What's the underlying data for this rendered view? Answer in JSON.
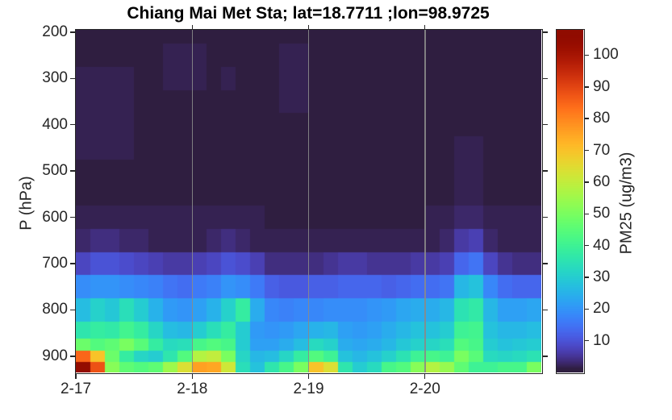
{
  "title": "Chiang Mai Met Sta; lat=18.7711 ;lon=98.9725",
  "axes": {
    "ylabel": "P (hPa)",
    "y_ticks": [
      200,
      300,
      400,
      500,
      600,
      700,
      800,
      900
    ],
    "y_range_hpa": [
      195,
      935
    ],
    "x_tick_labels": [
      "2-17",
      "2-18",
      "2-19",
      "2-20"
    ],
    "x_tick_hours": [
      0,
      24,
      48,
      72
    ],
    "gridline_hours": [
      24,
      48,
      72
    ],
    "x_range_hours": [
      0,
      96
    ]
  },
  "colorbar": {
    "label": "PM25 (ug/m3)",
    "ticks": [
      10,
      20,
      30,
      40,
      50,
      60,
      70,
      80,
      90,
      100
    ],
    "clim": [
      0,
      108
    ],
    "colormap": "turbo"
  },
  "colors": {
    "background": "#ffffff",
    "axis": "#262626",
    "gridline": "#8a8a8a",
    "low_value": "#2e1440",
    "high_value": "#7a0403"
  },
  "chart_data": {
    "type": "heatmap",
    "title": "Chiang Mai Met Sta; lat=18.7711 ;lon=98.9725",
    "ylabel": "P (hPa)",
    "value_label": "PM25 (ug/m3)",
    "x_dates": [
      "2-17",
      "2-18",
      "2-19",
      "2-20"
    ],
    "time_start_hour": 0,
    "time_step_hours": 3,
    "n_times": 32,
    "pressure_levels_hpa": [
      200,
      250,
      300,
      350,
      400,
      450,
      500,
      550,
      600,
      650,
      700,
      750,
      800,
      850,
      875,
      900,
      925
    ],
    "values_ug_m3": [
      [
        1,
        1,
        1,
        1,
        1,
        1,
        1,
        1,
        1,
        1,
        1,
        1,
        1,
        1,
        1,
        1,
        1,
        1,
        1,
        1,
        1,
        1,
        1,
        1,
        1,
        1,
        1,
        1,
        1,
        1,
        1,
        1
      ],
      [
        1,
        1,
        1,
        1,
        1,
        1,
        2,
        2,
        2,
        1,
        1,
        1,
        1,
        1,
        2,
        2,
        1,
        1,
        1,
        1,
        1,
        1,
        1,
        1,
        1,
        1,
        1,
        1,
        1,
        1,
        1,
        1
      ],
      [
        2,
        2,
        2,
        2,
        1,
        1,
        2,
        2,
        2,
        1,
        2,
        1,
        1,
        1,
        2,
        2,
        1,
        1,
        1,
        1,
        1,
        1,
        1,
        1,
        1,
        1,
        1,
        1,
        1,
        1,
        1,
        1
      ],
      [
        2,
        2,
        2,
        2,
        1,
        1,
        1,
        1,
        1,
        1,
        1,
        1,
        1,
        1,
        2,
        2,
        1,
        1,
        1,
        1,
        1,
        1,
        1,
        1,
        1,
        1,
        1,
        1,
        1,
        1,
        1,
        1
      ],
      [
        2,
        2,
        2,
        2,
        1,
        1,
        1,
        1,
        1,
        1,
        1,
        1,
        1,
        1,
        1,
        1,
        1,
        1,
        1,
        1,
        1,
        1,
        1,
        1,
        1,
        1,
        1,
        1,
        1,
        1,
        1,
        1
      ],
      [
        2,
        2,
        2,
        2,
        1,
        1,
        1,
        1,
        1,
        1,
        1,
        1,
        1,
        1,
        1,
        1,
        1,
        1,
        1,
        1,
        1,
        1,
        1,
        1,
        1,
        1,
        2,
        2,
        1,
        1,
        1,
        1
      ],
      [
        1,
        1,
        1,
        1,
        1,
        1,
        1,
        1,
        1,
        1,
        1,
        1,
        1,
        1,
        1,
        1,
        1,
        1,
        1,
        1,
        1,
        1,
        1,
        1,
        1,
        1,
        2,
        2,
        1,
        1,
        1,
        1
      ],
      [
        1,
        1,
        1,
        1,
        1,
        1,
        1,
        1,
        1,
        1,
        1,
        1,
        1,
        1,
        1,
        1,
        1,
        1,
        1,
        1,
        1,
        1,
        1,
        1,
        1,
        1,
        2,
        2,
        1,
        1,
        1,
        1
      ],
      [
        2,
        2,
        2,
        2,
        2,
        2,
        2,
        2,
        2,
        2,
        2,
        2,
        2,
        1,
        1,
        1,
        1,
        1,
        1,
        1,
        1,
        1,
        1,
        1,
        2,
        2,
        3,
        3,
        2,
        2,
        2,
        2
      ],
      [
        3,
        4,
        4,
        3,
        3,
        2,
        2,
        2,
        2,
        3,
        4,
        3,
        2,
        2,
        2,
        2,
        2,
        2,
        2,
        2,
        2,
        2,
        2,
        2,
        2,
        3,
        6,
        7,
        3,
        2,
        2,
        2
      ],
      [
        8,
        10,
        10,
        9,
        8,
        7,
        6,
        6,
        7,
        8,
        10,
        9,
        7,
        4,
        4,
        4,
        4,
        5,
        6,
        6,
        5,
        5,
        5,
        6,
        6,
        7,
        13,
        15,
        8,
        5,
        4,
        4
      ],
      [
        19,
        20,
        20,
        19,
        18,
        17,
        15,
        14,
        16,
        17,
        20,
        19,
        16,
        12,
        11,
        11,
        12,
        12,
        13,
        13,
        13,
        12,
        13,
        14,
        14,
        15,
        26,
        28,
        18,
        14,
        13,
        13
      ],
      [
        27,
        31,
        29,
        34,
        30,
        25,
        21,
        20,
        22,
        25,
        31,
        38,
        24,
        18,
        17,
        18,
        18,
        19,
        19,
        19,
        20,
        21,
        23,
        24,
        24,
        26,
        35,
        37,
        26,
        22,
        22,
        23
      ],
      [
        36,
        38,
        37,
        41,
        38,
        32,
        27,
        26,
        30,
        34,
        38,
        30,
        21,
        20,
        21,
        23,
        25,
        26,
        22,
        21,
        22,
        24,
        26,
        28,
        28,
        30,
        40,
        41,
        28,
        26,
        26,
        27
      ],
      [
        48,
        44,
        46,
        50,
        45,
        38,
        33,
        34,
        42,
        44,
        42,
        30,
        22,
        22,
        24,
        27,
        33,
        31,
        24,
        23,
        24,
        26,
        29,
        31,
        32,
        34,
        44,
        42,
        30,
        28,
        29,
        30
      ],
      [
        85,
        70,
        48,
        38,
        32,
        30,
        36,
        44,
        58,
        60,
        50,
        32,
        26,
        27,
        32,
        38,
        44,
        40,
        28,
        26,
        28,
        31,
        35,
        40,
        42,
        40,
        50,
        45,
        33,
        32,
        33,
        35
      ],
      [
        105,
        88,
        52,
        46,
        44,
        46,
        55,
        64,
        76,
        75,
        62,
        34,
        28,
        36,
        42,
        50,
        70,
        64,
        36,
        30,
        33,
        42,
        44,
        52,
        58,
        54,
        46,
        40,
        40,
        42,
        42,
        50
      ]
    ],
    "legend_position": "right-colorbar",
    "grid": "vertical-day-lines"
  }
}
